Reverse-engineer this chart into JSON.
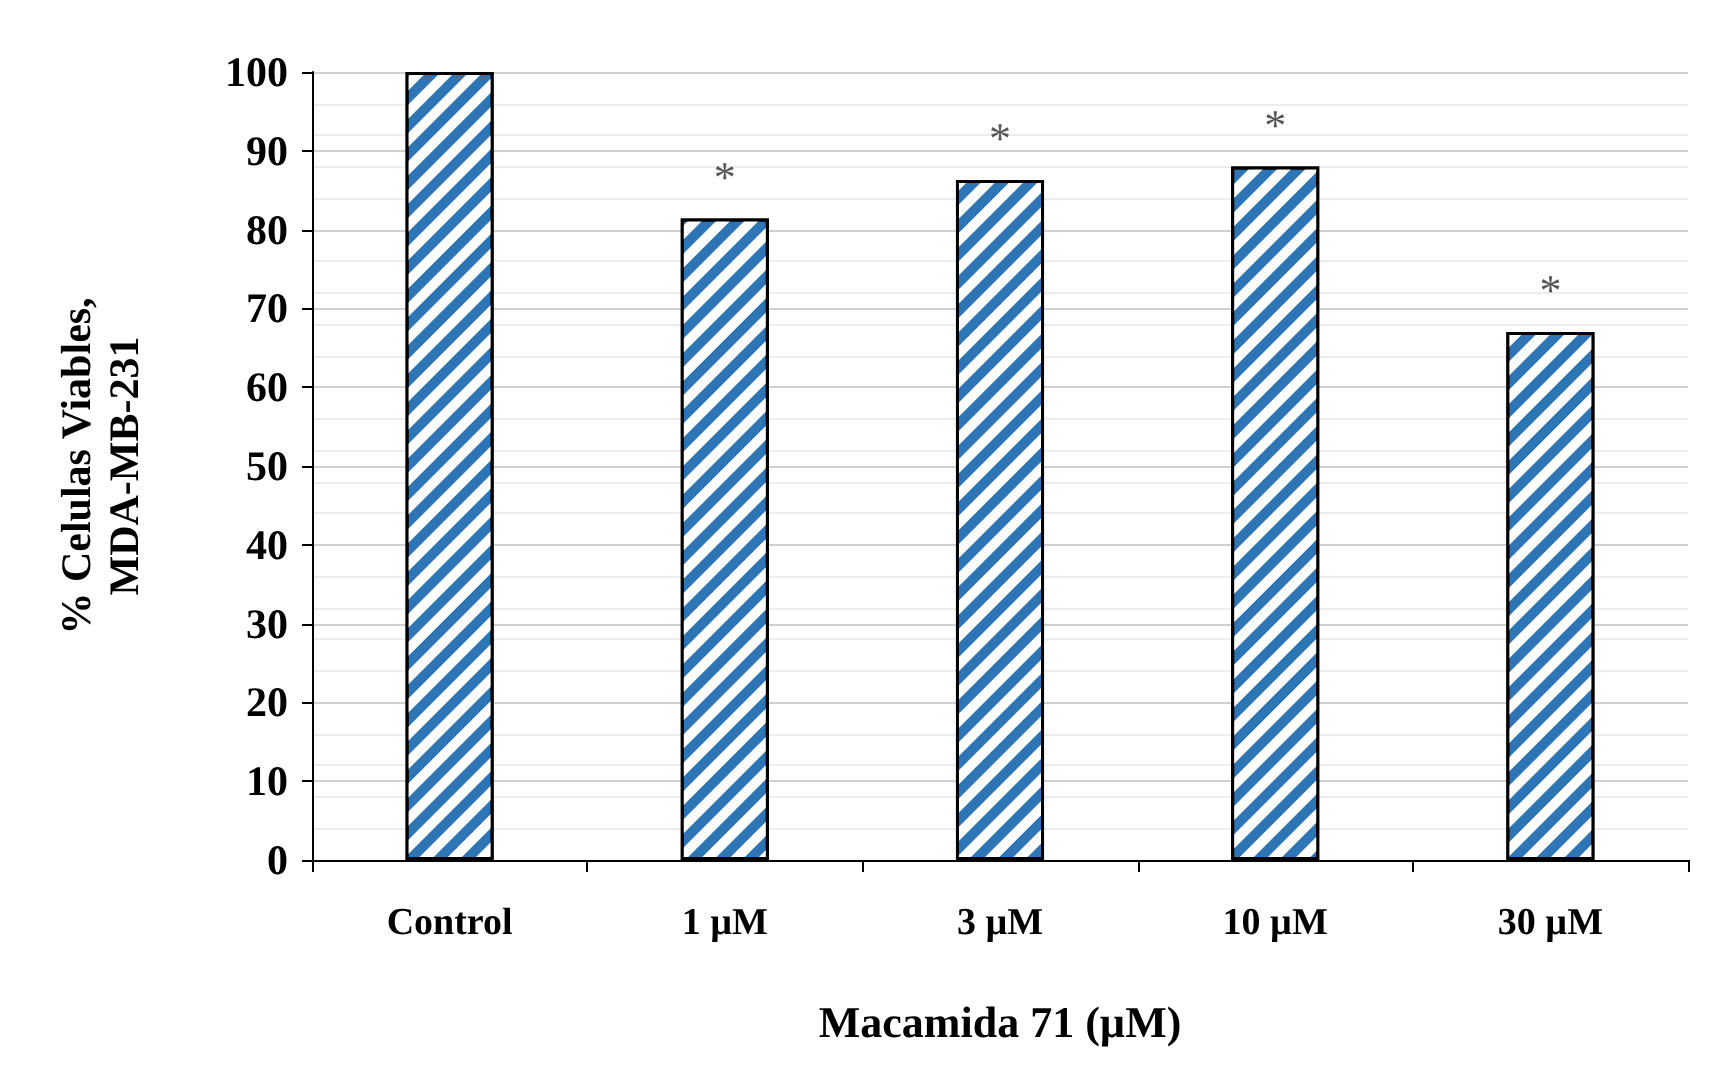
{
  "chart_data": {
    "type": "bar",
    "xlabel": "Macamida 71 (µM)",
    "ylabel": "% Celulas Viables,\nMDA-MB-231",
    "categories": [
      "Control",
      "1 µM",
      "3 µM",
      "10 µM",
      "30 µM"
    ],
    "values": [
      100,
      81.4,
      86.3,
      88.0,
      67.0
    ],
    "color": "#2e75b6",
    "ylim": [
      0,
      100
    ],
    "yticks": [
      0,
      10,
      20,
      30,
      40,
      50,
      60,
      70,
      80,
      90,
      100
    ],
    "grid": "y",
    "annotations": [
      "*",
      "*",
      "*",
      "*"
    ]
  }
}
